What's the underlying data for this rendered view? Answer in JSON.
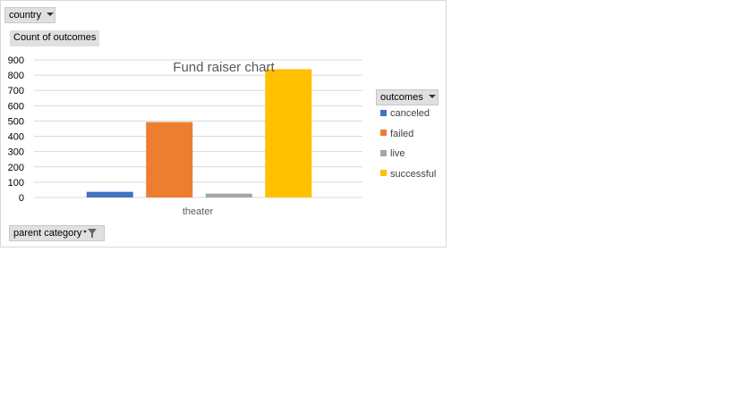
{
  "filters": {
    "report_filter_label": "country",
    "values_label": "Count of outcomes",
    "axis_field_label": "parent category",
    "legend_field_label": "outcomes"
  },
  "chart_data": {
    "type": "bar",
    "title": "Fund raiser chart",
    "categories": [
      "theater"
    ],
    "series": [
      {
        "name": "canceled",
        "color": "#4472c4",
        "values": [
          37
        ]
      },
      {
        "name": "failed",
        "color": "#ed7d31",
        "values": [
          493
        ]
      },
      {
        "name": "live",
        "color": "#a5a5a5",
        "values": [
          25
        ]
      },
      {
        "name": "successful",
        "color": "#ffc000",
        "values": [
          839
        ]
      }
    ],
    "ylim": [
      0,
      900
    ],
    "yticks": [
      0,
      100,
      200,
      300,
      400,
      500,
      600,
      700,
      800,
      900
    ],
    "grid": true,
    "legend_position": "right",
    "xlabel": "",
    "ylabel": ""
  }
}
